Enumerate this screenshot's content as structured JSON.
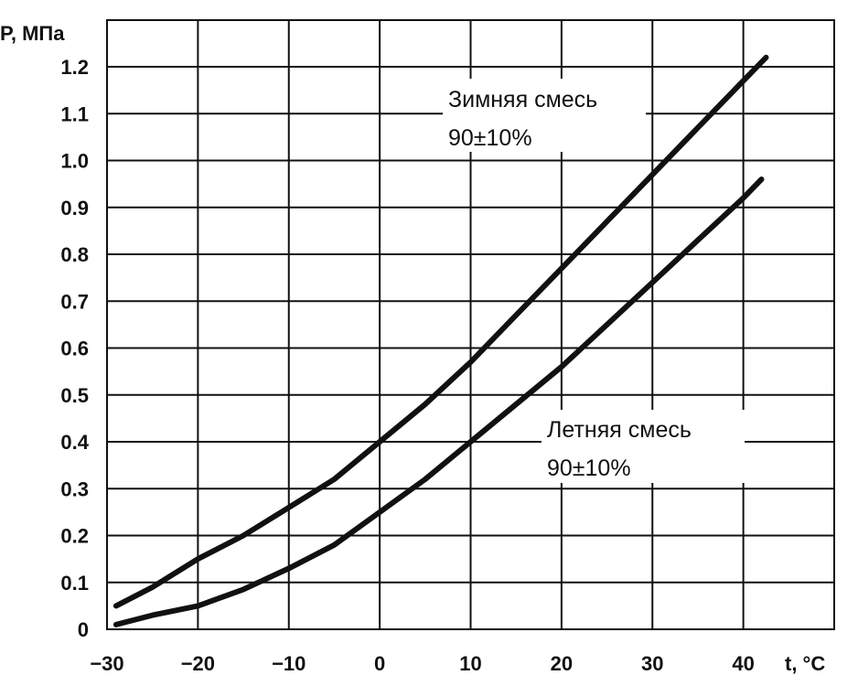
{
  "chart_data": {
    "type": "line",
    "ylabel": "P, МПа",
    "xlabel": "t, °C",
    "xlim": [
      -30,
      50
    ],
    "ylim": [
      0,
      1.2
    ],
    "grid": true,
    "x_ticks": [
      "−30",
      "−20",
      "−10",
      "0",
      "10",
      "20",
      "30",
      "40"
    ],
    "x_tick_values": [
      -30,
      -20,
      -10,
      0,
      10,
      20,
      30,
      40
    ],
    "y_ticks": [
      "0",
      "0.1",
      "0.2",
      "0.3",
      "0.4",
      "0.5",
      "0.6",
      "0.7",
      "0.8",
      "0.9",
      "1.0",
      "1.1",
      "1.2"
    ],
    "y_tick_values": [
      0,
      0.1,
      0.2,
      0.3,
      0.4,
      0.5,
      0.6,
      0.7,
      0.8,
      0.9,
      1.0,
      1.1,
      1.2
    ],
    "series": [
      {
        "label_line1": "Зимняя смесь",
        "label_line2": "90±10%",
        "x": [
          -29,
          -25,
          -20,
          -15,
          -10,
          -5,
          0,
          5,
          10,
          15,
          20,
          25,
          30,
          35,
          40,
          42.5
        ],
        "y": [
          0.05,
          0.09,
          0.15,
          0.2,
          0.26,
          0.32,
          0.4,
          0.48,
          0.57,
          0.67,
          0.77,
          0.87,
          0.97,
          1.07,
          1.17,
          1.22
        ]
      },
      {
        "label_line1": "Летняя смесь",
        "label_line2": "90±10%",
        "x": [
          -29,
          -25,
          -20,
          -15,
          -10,
          -5,
          0,
          5,
          10,
          15,
          20,
          25,
          30,
          35,
          40,
          42
        ],
        "y": [
          0.01,
          0.03,
          0.05,
          0.085,
          0.13,
          0.18,
          0.25,
          0.32,
          0.4,
          0.48,
          0.56,
          0.65,
          0.74,
          0.83,
          0.92,
          0.96
        ]
      }
    ]
  }
}
